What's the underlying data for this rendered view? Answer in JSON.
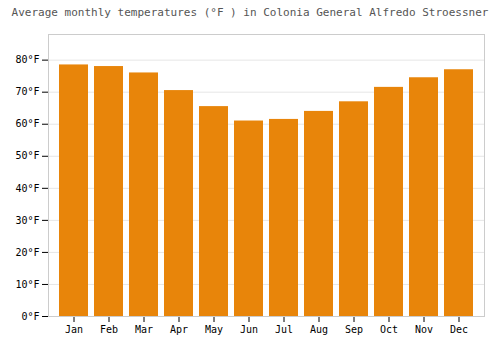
{
  "chart_data": {
    "type": "bar",
    "title": "Average monthly temperatures (°F ) in Colonia General Alfredo Stroessner",
    "categories": [
      "Jan",
      "Feb",
      "Mar",
      "Apr",
      "May",
      "Jun",
      "Jul",
      "Aug",
      "Sep",
      "Oct",
      "Nov",
      "Dec"
    ],
    "values": [
      78.5,
      78.0,
      76.0,
      70.5,
      65.5,
      61.0,
      61.5,
      64.0,
      67.0,
      71.5,
      74.5,
      77.0
    ],
    "color": "#E8850A",
    "ylim": [
      0,
      88
    ],
    "yticks": [
      {
        "value": 0,
        "label": "0°F"
      },
      {
        "value": 10,
        "label": "10°F"
      },
      {
        "value": 20,
        "label": "20°F"
      },
      {
        "value": 30,
        "label": "30°F"
      },
      {
        "value": 40,
        "label": "40°F"
      },
      {
        "value": 50,
        "label": "50°F"
      },
      {
        "value": 60,
        "label": "60°F"
      },
      {
        "value": 70,
        "label": "70°F"
      },
      {
        "value": 80,
        "label": "80°F"
      }
    ],
    "grid": true
  }
}
